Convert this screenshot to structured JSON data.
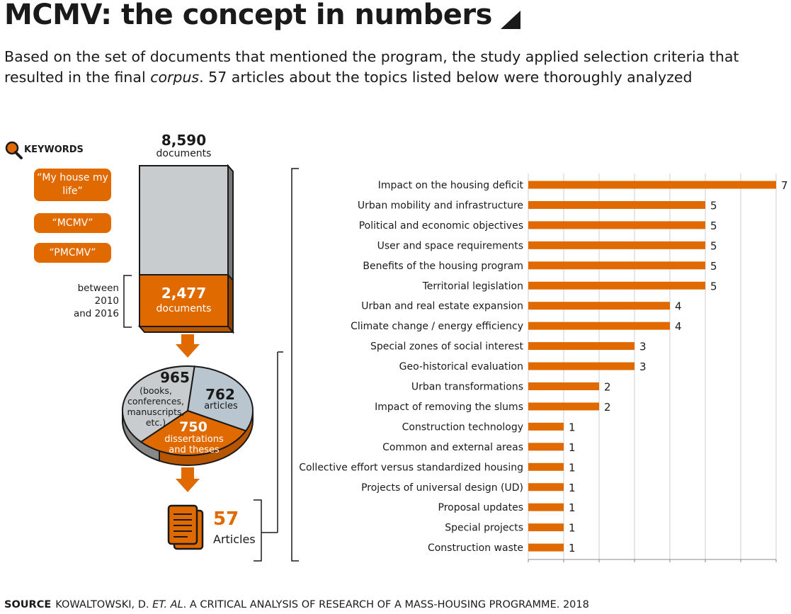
{
  "title": "MCMV: the concept in numbers",
  "subtitle_line1": "Based on the set of documents that mentioned the program, the study applied selection criteria that",
  "subtitle_line2_a": "resulted in the final ",
  "subtitle_line2_em": "corpus",
  "subtitle_line2_b": ". 57 articles about the topics listed below were thoroughly analyzed",
  "keywords": {
    "label": "KEYWORDS",
    "items": [
      "“My house my life”",
      "“MCMV”",
      "“PMCMV”"
    ]
  },
  "funnel": {
    "total_count": "8,590",
    "total_unit": "documents",
    "filtered_count": "2,477",
    "filtered_unit": "documents",
    "period_line1": "between",
    "period_line2": "2010",
    "period_line3": "and 2016",
    "pie": {
      "slices": [
        {
          "count": "965",
          "label_lines": [
            "(books,",
            "conferences,",
            "manuscripts,",
            "etc.)"
          ],
          "value": 965
        },
        {
          "count": "762",
          "label_lines": [
            "articles"
          ],
          "value": 762
        },
        {
          "count": "750",
          "label_lines": [
            "dissertations",
            "and theses"
          ],
          "value": 750
        }
      ]
    },
    "final_count": "57",
    "final_unit": "Articles"
  },
  "colors": {
    "accent": "#e06a00",
    "gray_box": "#c8ccce",
    "blue_slice": "#b9c6cf",
    "dark_gray": "#555555",
    "grid": "#cfcfcf"
  },
  "chart_data": {
    "type": "bar",
    "orientation": "horizontal",
    "categories": [
      "Impact on the housing deficit",
      "Urban mobility and infrastructure",
      "Political and economic objectives",
      "User and space requirements",
      "Benefits of the housing program",
      "Territorial legislation",
      "Urban and real estate expansion",
      "Climate change / energy efficiency",
      "Special zones of social interest",
      "Geo-historical evaluation",
      "Urban transformations",
      "Impact of removing the slums",
      "Construction technology",
      "Common and external areas",
      "Collective effort versus standardized housing",
      "Projects of universal design (UD)",
      "Proposal updates",
      "Special projects",
      "Construction waste"
    ],
    "values": [
      7,
      5,
      5,
      5,
      5,
      5,
      4,
      4,
      3,
      3,
      2,
      2,
      1,
      1,
      1,
      1,
      1,
      1,
      1
    ],
    "xlim": [
      0,
      7
    ],
    "grid": true,
    "xlabel": "",
    "ylabel": ""
  },
  "source": {
    "label": "SOURCE",
    "text_a": "KOWALTOWSKI, D. ",
    "text_em": "ET. AL",
    "text_b": ". A CRITICAL ANALYSIS OF RESEARCH OF A MASS-HOUSING PROGRAMME. 2018"
  }
}
